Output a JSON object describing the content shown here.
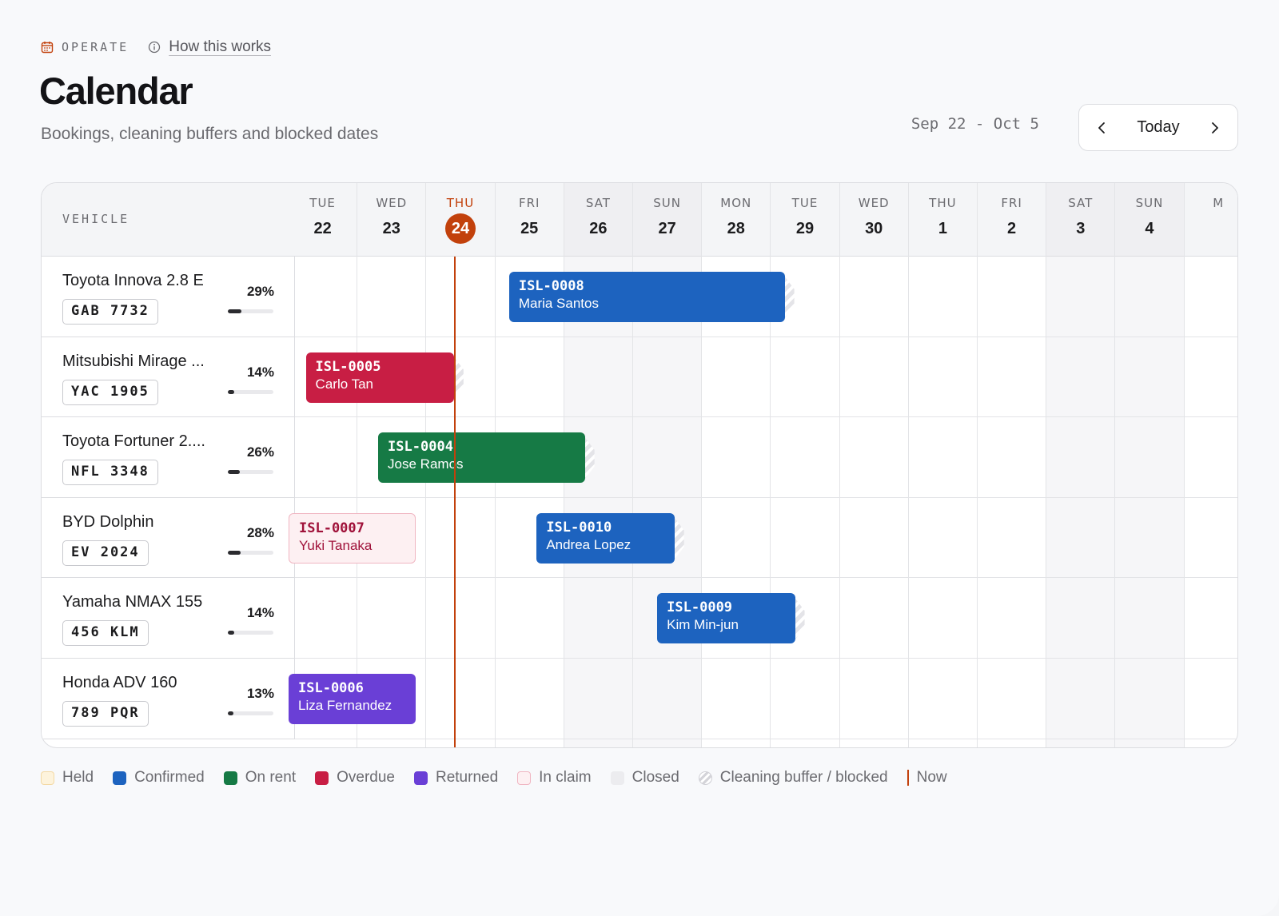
{
  "header": {
    "section": "OPERATE",
    "help_link": "How this works",
    "title": "Calendar",
    "subtitle": "Bookings, cleaning buffers and blocked dates",
    "date_range": "Sep 22 - Oct 5",
    "today_label": "Today"
  },
  "grid": {
    "vehicle_header": "VEHICLE",
    "days": [
      {
        "dow": "TUE",
        "num": "22"
      },
      {
        "dow": "WED",
        "num": "23"
      },
      {
        "dow": "THU",
        "num": "24"
      },
      {
        "dow": "FRI",
        "num": "25"
      },
      {
        "dow": "SAT",
        "num": "26"
      },
      {
        "dow": "SUN",
        "num": "27"
      },
      {
        "dow": "MON",
        "num": "28"
      },
      {
        "dow": "TUE",
        "num": "29"
      },
      {
        "dow": "WED",
        "num": "30"
      },
      {
        "dow": "THU",
        "num": "1"
      },
      {
        "dow": "FRI",
        "num": "2"
      },
      {
        "dow": "SAT",
        "num": "3"
      },
      {
        "dow": "SUN",
        "num": "4"
      },
      {
        "dow": "M",
        "num": ""
      }
    ],
    "today_index": 2,
    "weekend_indices": [
      4,
      5,
      11,
      12
    ],
    "vehicles": [
      {
        "name": "Toyota Innova 2.8 E",
        "plate": "GAB 7732",
        "utilization": "29%",
        "util_value": 0.29
      },
      {
        "name": "Mitsubishi Mirage ...",
        "plate": "YAC 1905",
        "utilization": "14%",
        "util_value": 0.14
      },
      {
        "name": "Toyota Fortuner 2....",
        "plate": "NFL 3348",
        "utilization": "26%",
        "util_value": 0.26
      },
      {
        "name": "BYD Dolphin",
        "plate": "EV 2024",
        "utilization": "28%",
        "util_value": 0.28
      },
      {
        "name": "Yamaha NMAX 155",
        "plate": "456 KLM",
        "utilization": "14%",
        "util_value": 0.14
      },
      {
        "name": "Honda ADV 160",
        "plate": "789 PQR",
        "utilization": "13%",
        "util_value": 0.13
      }
    ],
    "bookings": [
      {
        "code": "ISL-0008",
        "customer": "Maria Santos",
        "status": "Confirmed",
        "vehicle": "Toyota Innova 2.8 E",
        "start_day": 3.2,
        "end_day": 7.2,
        "buffer": true
      },
      {
        "code": "ISL-0005",
        "customer": "Carlo Tan",
        "status": "Overdue",
        "vehicle": "Mitsubishi Mirage ...",
        "start_day": 0.25,
        "end_day": 2.4,
        "buffer": true
      },
      {
        "code": "ISL-0004",
        "customer": "Jose Ramos",
        "status": "On rent",
        "vehicle": "Toyota Fortuner 2....",
        "start_day": 1.3,
        "end_day": 4.3,
        "buffer": true
      },
      {
        "code": "ISL-0007",
        "customer": "Yuki Tanaka",
        "status": "In claim",
        "vehicle": "BYD Dolphin",
        "start_day": 0.0,
        "end_day": 1.85,
        "buffer": false
      },
      {
        "code": "ISL-0010",
        "customer": "Andrea Lopez",
        "status": "Confirmed",
        "vehicle": "BYD Dolphin",
        "start_day": 3.6,
        "end_day": 5.6,
        "buffer": true
      },
      {
        "code": "ISL-0009",
        "customer": "Kim Min-jun",
        "status": "Confirmed",
        "vehicle": "Yamaha NMAX 155",
        "start_day": 5.35,
        "end_day": 7.35,
        "buffer": true
      },
      {
        "code": "ISL-0006",
        "customer": "Liza Fernandez",
        "status": "Returned",
        "vehicle": "Honda ADV 160",
        "start_day": 0.0,
        "end_day": 1.85,
        "buffer": false
      }
    ],
    "now_day": 2.4
  },
  "legend": [
    {
      "label": "Held",
      "color": "#fdf3dc",
      "border": "#f3d9a4",
      "type": "swatch"
    },
    {
      "label": "Confirmed",
      "color": "#1d63bf",
      "type": "swatch"
    },
    {
      "label": "On rent",
      "color": "#167a45",
      "type": "swatch"
    },
    {
      "label": "Overdue",
      "color": "#c81e44",
      "type": "swatch"
    },
    {
      "label": "Returned",
      "color": "#6a3fd6",
      "type": "swatch"
    },
    {
      "label": "In claim",
      "color": "#fdf0f2",
      "border": "#f0b6c2",
      "type": "swatch"
    },
    {
      "label": "Closed",
      "color": "#ececef",
      "type": "swatch"
    },
    {
      "label": "Cleaning buffer / blocked",
      "type": "buffer"
    },
    {
      "label": "Now",
      "color": "#c2410c",
      "type": "now"
    }
  ],
  "icons": {
    "section_icon": "calendar-icon",
    "help_icon": "info-icon",
    "prev_icon": "chevron-left-icon",
    "next_icon": "chevron-right-icon"
  },
  "colors": {
    "accent_today": "#c2410c",
    "confirmed": "#1d63bf",
    "on_rent": "#167a45",
    "overdue": "#c81e44",
    "returned": "#6a3fd6"
  }
}
